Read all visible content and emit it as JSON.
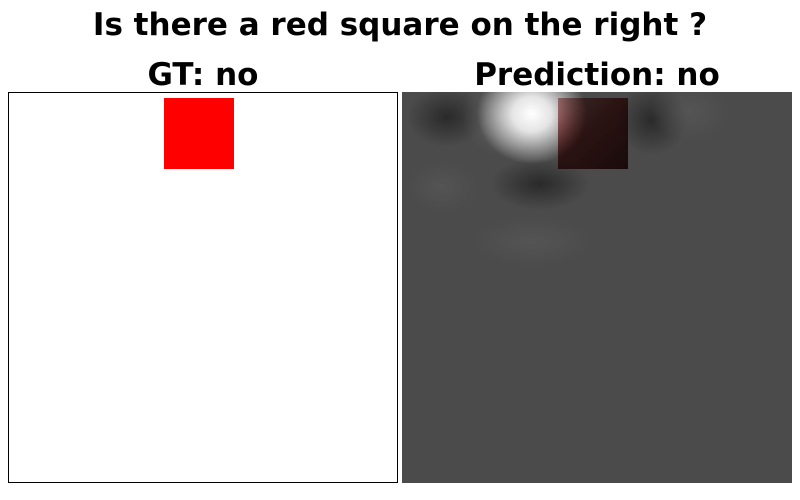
{
  "question": "Is there a red square on the right ?",
  "gt_panel": {
    "title": "GT: no",
    "square_color": "#ff0000",
    "background_color": "#ffffff"
  },
  "prediction_panel": {
    "title": "Prediction: no",
    "background_color": "#4b4b4b",
    "highlight_color": "#ffffff",
    "shadow_color": "#2e2e2e"
  }
}
